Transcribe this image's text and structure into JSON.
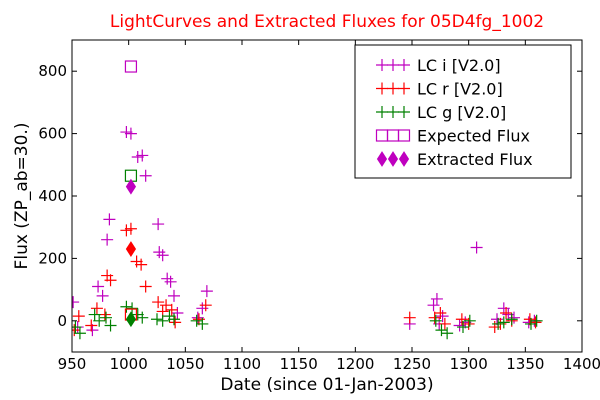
{
  "chart_data": {
    "type": "scatter",
    "title": "LightCurves and Extracted Fluxes for 05D4fg_1002",
    "xlabel": "Date (since 01-Jan-2003)",
    "ylabel": "Flux (ZP_ab=30.)",
    "xlim": [
      950,
      1400
    ],
    "ylim": [
      -100,
      900
    ],
    "xticks": [
      950,
      1000,
      1050,
      1100,
      1150,
      1200,
      1250,
      1300,
      1350,
      1400
    ],
    "yticks": [
      0,
      200,
      400,
      600,
      800
    ],
    "legend_position": "top-right",
    "colors": {
      "i": "#bf00bf",
      "r": "#ff0000",
      "g": "#008000",
      "title": "#ff0000"
    },
    "series": [
      {
        "name": "LC i [V2.0]",
        "marker": "plus",
        "color": "#bf00bf",
        "points": [
          [
            951,
            60
          ],
          [
            955,
            -20
          ],
          [
            968,
            -30
          ],
          [
            973,
            110
          ],
          [
            977,
            80
          ],
          [
            981,
            260
          ],
          [
            983,
            325
          ],
          [
            998,
            605
          ],
          [
            1002,
            600
          ],
          [
            1008,
            525
          ],
          [
            1012,
            530
          ],
          [
            1015,
            465
          ],
          [
            1026,
            310
          ],
          [
            1027,
            220
          ],
          [
            1030,
            210
          ],
          [
            1034,
            135
          ],
          [
            1037,
            125
          ],
          [
            1040,
            80
          ],
          [
            1043,
            25
          ],
          [
            1061,
            10
          ],
          [
            1065,
            40
          ],
          [
            1069,
            95
          ],
          [
            1248,
            -10
          ],
          [
            1269,
            50
          ],
          [
            1272,
            70
          ],
          [
            1274,
            -10
          ],
          [
            1277,
            15
          ],
          [
            1292,
            -15
          ],
          [
            1297,
            -5
          ],
          [
            1307,
            235
          ],
          [
            1325,
            5
          ],
          [
            1331,
            40
          ],
          [
            1335,
            20
          ],
          [
            1340,
            10
          ],
          [
            1353,
            -5
          ],
          [
            1358,
            0
          ]
        ]
      },
      {
        "name": "LC r [V2.0]",
        "marker": "plus",
        "color": "#ff0000",
        "points": [
          [
            952,
            -30
          ],
          [
            956,
            15
          ],
          [
            967,
            -15
          ],
          [
            972,
            40
          ],
          [
            979,
            20
          ],
          [
            981,
            145
          ],
          [
            984,
            130
          ],
          [
            998,
            290
          ],
          [
            1002,
            295
          ],
          [
            1007,
            190
          ],
          [
            1011,
            180
          ],
          [
            1015,
            110
          ],
          [
            1026,
            60
          ],
          [
            1030,
            30
          ],
          [
            1033,
            50
          ],
          [
            1038,
            35
          ],
          [
            1041,
            -5
          ],
          [
            1062,
            5
          ],
          [
            1068,
            50
          ],
          [
            1248,
            10
          ],
          [
            1270,
            10
          ],
          [
            1275,
            25
          ],
          [
            1279,
            -10
          ],
          [
            1294,
            5
          ],
          [
            1300,
            -10
          ],
          [
            1323,
            -20
          ],
          [
            1328,
            -10
          ],
          [
            1333,
            25
          ],
          [
            1338,
            0
          ],
          [
            1354,
            5
          ],
          [
            1359,
            -5
          ]
        ]
      },
      {
        "name": "LC g [V2.0]",
        "marker": "plus",
        "color": "#008000",
        "points": [
          [
            953,
            -20
          ],
          [
            957,
            -40
          ],
          [
            970,
            20
          ],
          [
            974,
            0
          ],
          [
            980,
            10
          ],
          [
            984,
            -15
          ],
          [
            998,
            45
          ],
          [
            1003,
            40
          ],
          [
            1008,
            20
          ],
          [
            1012,
            10
          ],
          [
            1025,
            5
          ],
          [
            1030,
            0
          ],
          [
            1036,
            15
          ],
          [
            1040,
            5
          ],
          [
            1060,
            0
          ],
          [
            1065,
            -10
          ],
          [
            1271,
            0
          ],
          [
            1276,
            -30
          ],
          [
            1281,
            -40
          ],
          [
            1295,
            -20
          ],
          [
            1301,
            0
          ],
          [
            1326,
            -10
          ],
          [
            1331,
            -5
          ],
          [
            1338,
            5
          ],
          [
            1355,
            -10
          ],
          [
            1360,
            0
          ]
        ]
      },
      {
        "name": "Expected Flux",
        "marker": "square",
        "color": "#bf00bf",
        "points": [
          [
            1002,
            815
          ],
          [
            1002,
            465
          ],
          [
            1002,
            20
          ]
        ],
        "point_colors": [
          "#bf00bf",
          "#008000",
          "#ff0000"
        ]
      },
      {
        "name": "Extracted Flux",
        "marker": "diamond",
        "color": "#bf00bf",
        "points": [
          [
            1002,
            430
          ],
          [
            1002,
            230
          ],
          [
            1002,
            5
          ]
        ],
        "point_colors": [
          "#bf00bf",
          "#ff0000",
          "#008000"
        ]
      }
    ]
  }
}
